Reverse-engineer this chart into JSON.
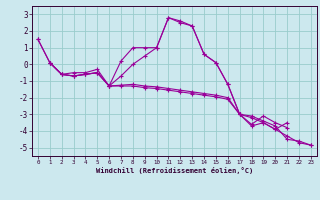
{
  "xlabel": "Windchill (Refroidissement éolien,°C)",
  "bg_color": "#cce8ee",
  "line_color": "#990099",
  "grid_color": "#99cccc",
  "axis_color": "#330033",
  "text_color": "#330033",
  "xlim": [
    -0.5,
    23.5
  ],
  "ylim": [
    -5.5,
    3.5
  ],
  "yticks": [
    3,
    2,
    1,
    0,
    -1,
    -2,
    -3,
    -4,
    -5
  ],
  "xticks": [
    0,
    1,
    2,
    3,
    4,
    5,
    6,
    7,
    8,
    9,
    10,
    11,
    12,
    13,
    14,
    15,
    16,
    17,
    18,
    19,
    20,
    21,
    22,
    23
  ],
  "series": [
    {
      "x": [
        0,
        1,
        2,
        3,
        4,
        5,
        6,
        7,
        8,
        9,
        10,
        11,
        12,
        13,
        14,
        15,
        16,
        17,
        18,
        19,
        20,
        21
      ],
      "y": [
        1.5,
        0.1,
        -0.6,
        -0.5,
        -0.5,
        -0.3,
        -1.3,
        0.2,
        1.0,
        1.0,
        1.0,
        2.8,
        2.6,
        2.3,
        0.6,
        0.1,
        -1.2,
        -3.0,
        -3.6,
        -3.1,
        -3.5,
        -3.8
      ]
    },
    {
      "x": [
        0,
        1,
        2,
        3,
        4,
        5,
        6,
        7,
        8,
        9,
        10,
        11,
        12,
        13,
        14,
        15,
        16,
        17,
        18,
        19,
        20,
        21
      ],
      "y": [
        1.5,
        0.1,
        -0.6,
        -0.7,
        -0.6,
        -0.5,
        -1.3,
        -0.7,
        0.0,
        0.5,
        1.0,
        2.8,
        2.5,
        2.3,
        0.6,
        0.1,
        -1.2,
        -3.0,
        -3.7,
        -3.5,
        -3.9,
        -3.5
      ]
    },
    {
      "x": [
        1,
        2,
        3,
        4,
        5,
        6,
        7,
        8,
        9,
        10,
        11,
        12,
        13,
        14,
        15,
        16,
        17,
        18,
        19,
        20,
        21,
        22,
        23
      ],
      "y": [
        0.1,
        -0.6,
        -0.7,
        -0.6,
        -0.5,
        -1.3,
        -1.3,
        -1.3,
        -1.4,
        -1.45,
        -1.55,
        -1.65,
        -1.75,
        -1.85,
        -1.95,
        -2.1,
        -3.0,
        -3.2,
        -3.5,
        -3.9,
        -4.3,
        -4.7,
        -4.85
      ]
    },
    {
      "x": [
        1,
        2,
        3,
        4,
        5,
        6,
        7,
        8,
        9,
        10,
        11,
        12,
        13,
        14,
        15,
        16,
        17,
        18,
        19,
        20,
        21,
        22,
        23
      ],
      "y": [
        0.1,
        -0.6,
        -0.7,
        -0.6,
        -0.5,
        -1.3,
        -1.25,
        -1.2,
        -1.3,
        -1.35,
        -1.45,
        -1.55,
        -1.65,
        -1.75,
        -1.85,
        -2.0,
        -3.0,
        -3.1,
        -3.4,
        -3.7,
        -4.5,
        -4.6,
        -4.85
      ]
    }
  ]
}
